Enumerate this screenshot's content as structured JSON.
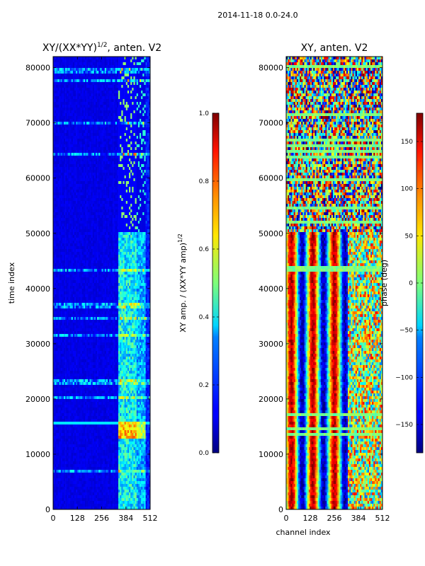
{
  "figure": {
    "suptitle": "2014-11-18 0.0-24.0"
  },
  "chart_data": [
    {
      "type": "heatmap",
      "title": "XY/(XX*YY)",
      "title_sup": "1/2",
      "title_suffix": ", anten. V2",
      "xlabel": "",
      "ylabel": "time index",
      "xlim": [
        0,
        512
      ],
      "ylim": [
        0,
        82000
      ],
      "xticks": [
        0,
        128,
        256,
        384,
        512
      ],
      "yticks": [
        0,
        10000,
        20000,
        30000,
        40000,
        50000,
        60000,
        70000,
        80000
      ],
      "colorbar": {
        "label": "XY amp. / (XX*YY amp)",
        "label_sup": "1/2",
        "range": [
          0.0,
          1.0
        ],
        "ticks": [
          "0.0",
          "0.2",
          "0.4",
          "0.6",
          "0.8",
          "1.0"
        ],
        "colormap": "jet"
      }
    },
    {
      "type": "heatmap",
      "title": "XY, anten. V2",
      "xlabel": "channel index",
      "ylabel": "",
      "xlim": [
        0,
        512
      ],
      "ylim": [
        0,
        82000
      ],
      "xticks": [
        0,
        128,
        256,
        384,
        512
      ],
      "yticks": [
        0,
        10000,
        20000,
        30000,
        40000,
        50000,
        60000,
        70000,
        80000
      ],
      "colorbar": {
        "label": "phase (deg)",
        "range": [
          -180,
          180
        ],
        "ticks": [
          "−150",
          "−100",
          "−50",
          "0",
          "50",
          "100",
          "150"
        ],
        "tick_values": [
          -150,
          -100,
          -50,
          0,
          50,
          100,
          150
        ],
        "colormap": "jet"
      }
    }
  ]
}
